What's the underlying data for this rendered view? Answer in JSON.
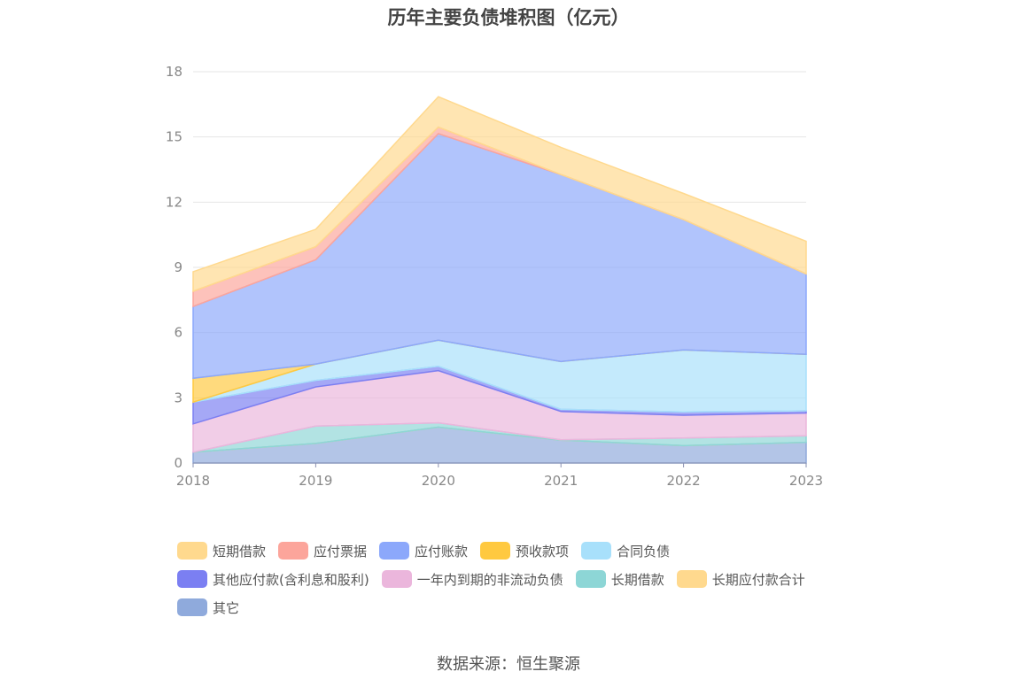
{
  "chart_data": {
    "type": "area",
    "stacked": true,
    "title": "历年主要负债堆积图（亿元）",
    "x": [
      "2018",
      "2019",
      "2020",
      "2021",
      "2022",
      "2023"
    ],
    "ylim": [
      0,
      18
    ],
    "yticks": [
      "0",
      "3",
      "6",
      "9",
      "12",
      "15",
      "18"
    ],
    "grid": true,
    "legend_position": "bottom",
    "series": [
      {
        "name": "其它",
        "color": "#8faadc",
        "values": [
          0.5,
          0.9,
          1.65,
          1.05,
          0.8,
          0.95
        ]
      },
      {
        "name": "长期应付款合计",
        "color": "#ffd98e",
        "values": [
          0,
          0,
          0,
          0,
          0,
          0
        ]
      },
      {
        "name": "长期借款",
        "color": "#8dd6d6",
        "values": [
          0,
          0.8,
          0.2,
          0.02,
          0.35,
          0.3
        ]
      },
      {
        "name": "一年内到期的非流动负债",
        "color": "#ebb6dc",
        "values": [
          1.3,
          1.8,
          2.4,
          1.3,
          1.05,
          1.05
        ]
      },
      {
        "name": "其他应付款(含利息和股利)",
        "color": "#7b7ff2",
        "values": [
          1.0,
          0.3,
          0.2,
          0.1,
          0.15,
          0.1
        ]
      },
      {
        "name": "合同负债",
        "color": "#a8e0fb",
        "values": [
          0,
          0.75,
          1.2,
          2.2,
          2.85,
          2.6
        ]
      },
      {
        "name": "预收款项",
        "color": "#ffc940",
        "values": [
          1.1,
          0,
          0,
          0,
          0,
          0
        ]
      },
      {
        "name": "应付账款",
        "color": "#8ca8fb",
        "values": [
          3.3,
          4.8,
          9.5,
          8.6,
          6.0,
          3.7
        ]
      },
      {
        "name": "应付票据",
        "color": "#fca59b",
        "values": [
          0.7,
          0.6,
          0.3,
          0,
          0,
          0
        ]
      },
      {
        "name": "短期借款",
        "color": "#ffd98e",
        "values": [
          0.9,
          0.8,
          1.4,
          1.25,
          1.2,
          1.5
        ]
      }
    ],
    "legend_rows": [
      [
        "短期借款",
        "应付票据",
        "应付账款",
        "预收款项",
        "合同负债"
      ],
      [
        "其他应付款(含利息和股利)",
        "一年内到期的非流动负债",
        "长期借款",
        "长期应付款合计"
      ],
      [
        "其它"
      ]
    ],
    "legend_colors": {
      "短期借款": "#ffd98e",
      "应付票据": "#fca59b",
      "应付账款": "#8ca8fb",
      "预收款项": "#ffc940",
      "合同负债": "#a8e0fb",
      "其他应付款(含利息和股利)": "#7b7ff2",
      "一年内到期的非流动负债": "#ebb6dc",
      "长期借款": "#8dd6d6",
      "长期应付款合计": "#ffd98e",
      "其它": "#8faadc"
    }
  },
  "source_text": "数据来源：恒生聚源"
}
